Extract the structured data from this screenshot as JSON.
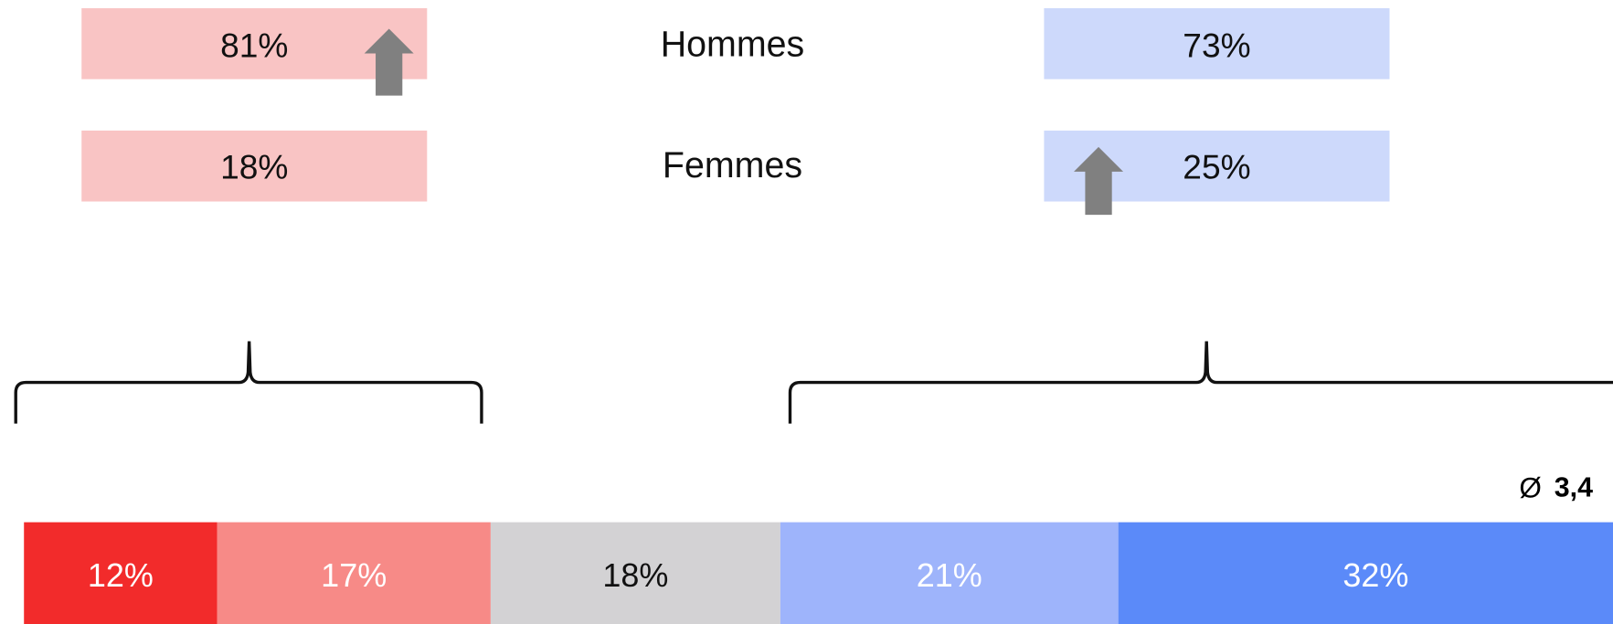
{
  "rows": [
    {
      "label": "Hommes",
      "left": "81%",
      "right": "73%"
    },
    {
      "label": "Femmes",
      "left": "18%",
      "right": "25%"
    }
  ],
  "average": {
    "symbol": "Ø",
    "value": "3,4"
  },
  "scale": {
    "segments": [
      {
        "value": 12,
        "label": "12%",
        "color": "#f22b2b",
        "text_color": "#ffffff"
      },
      {
        "value": 17,
        "label": "17%",
        "color": "#f78a87",
        "text_color": "#ffffff"
      },
      {
        "value": 18,
        "label": "18%",
        "color": "#d3d2d4",
        "text_color": "#111111"
      },
      {
        "value": 21,
        "label": "21%",
        "color": "#9eb4fb",
        "text_color": "#ffffff"
      },
      {
        "value": 32,
        "label": "32%",
        "color": "#5b8af9",
        "text_color": "#ffffff"
      }
    ]
  }
}
